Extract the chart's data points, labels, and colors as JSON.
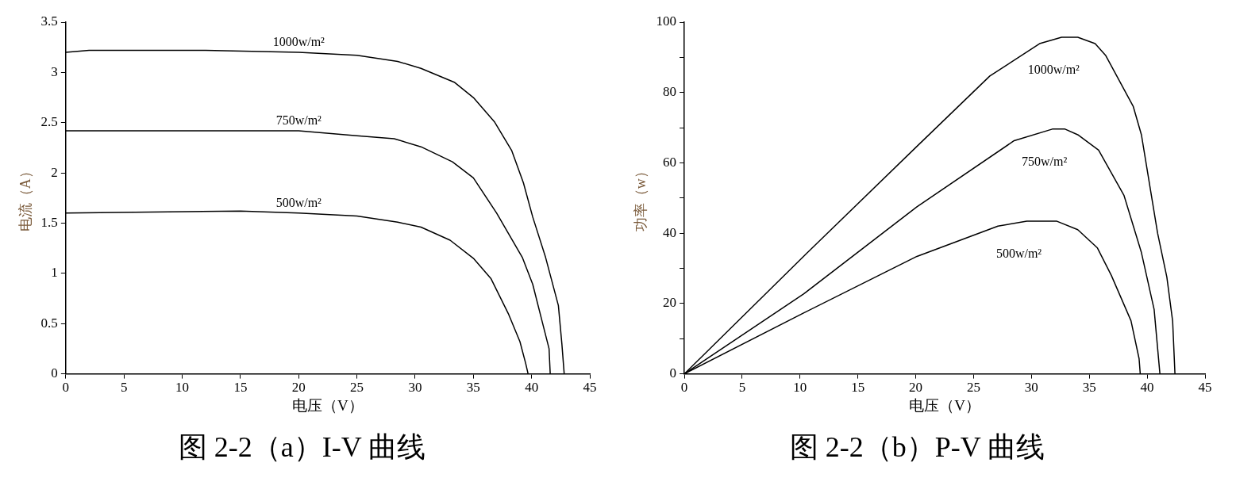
{
  "chart_data": [
    {
      "type": "line",
      "title": "图 2-2（a）I-V 曲线",
      "xlabel": "电压（V）",
      "ylabel": "电流（A）",
      "xlim": [
        0,
        45
      ],
      "xticks": [
        0,
        5,
        10,
        15,
        20,
        25,
        30,
        35,
        40,
        45
      ],
      "ylim": [
        0,
        3.5
      ],
      "yticks": [
        0,
        0.5,
        1,
        1.5,
        2,
        2.5,
        3,
        3.5
      ],
      "grid": false,
      "legend": false,
      "marker": "none",
      "line_style": "solid",
      "series": [
        {
          "name": "1000w/m²",
          "color": "#000000",
          "x": [
            0,
            2,
            12,
            20,
            25,
            28.5,
            30.5,
            33.4,
            35,
            36.8,
            38.3,
            39.3,
            40.1,
            41.2,
            42.3,
            42.6,
            42.8
          ],
          "values": [
            3.2,
            3.22,
            3.22,
            3.2,
            3.17,
            3.11,
            3.04,
            2.9,
            2.75,
            2.51,
            2.22,
            1.9,
            1.56,
            1.16,
            0.68,
            0.3,
            0
          ]
        },
        {
          "name": "750w/m²",
          "color": "#000000",
          "x": [
            0,
            20,
            25,
            28.2,
            30.5,
            33.2,
            35,
            37,
            39.2,
            40.1,
            40.8,
            41.5,
            41.6
          ],
          "values": [
            2.42,
            2.42,
            2.37,
            2.34,
            2.26,
            2.11,
            1.95,
            1.6,
            1.16,
            0.89,
            0.57,
            0.25,
            0
          ]
        },
        {
          "name": "500w/m²",
          "color": "#000000",
          "x": [
            0,
            15,
            20,
            25,
            28.5,
            30.5,
            33,
            35,
            36.5,
            38,
            39,
            39.5,
            39.7
          ],
          "values": [
            1.6,
            1.62,
            1.6,
            1.57,
            1.51,
            1.46,
            1.33,
            1.15,
            0.95,
            0.6,
            0.32,
            0.1,
            0
          ]
        }
      ]
    },
    {
      "type": "line",
      "title": "图 2-2（b）P-V 曲线",
      "xlabel": "电压（V）",
      "ylabel": "功率（w）",
      "xlim": [
        0,
        45
      ],
      "xticks": [
        0,
        5,
        10,
        15,
        20,
        25,
        30,
        35,
        40,
        45
      ],
      "ylim": [
        0,
        100
      ],
      "yticks": [
        0,
        {
          "value": 10,
          "label": null
        },
        20,
        {
          "value": 30,
          "label": null
        },
        40,
        {
          "value": 50,
          "label": null
        },
        60,
        {
          "value": 70,
          "label": null
        },
        80,
        {
          "value": 90,
          "label": null
        },
        100
      ],
      "grid": false,
      "legend": false,
      "marker": "none",
      "line_style": "solid",
      "series": [
        {
          "name": "1000w/m²",
          "color": "#000000",
          "x": [
            0,
            10.3,
            20.1,
            26.4,
            30.7,
            32.6,
            34,
            35.5,
            36.4,
            38.8,
            39.5,
            40.9,
            41.7,
            42.2,
            42.4
          ],
          "values": [
            0,
            33.4,
            64.7,
            84.7,
            93.9,
            95.7,
            95.7,
            93.9,
            90.6,
            76,
            68,
            40,
            27.5,
            15,
            0
          ]
        },
        {
          "name": "750w/m²",
          "color": "#000000",
          "x": [
            0,
            10.3,
            20.1,
            28.5,
            31.8,
            32.9,
            34,
            35.8,
            38,
            39.5,
            40.6,
            41.1
          ],
          "values": [
            0,
            22.7,
            47.5,
            66.3,
            69.6,
            69.6,
            68,
            63.6,
            50.7,
            34.5,
            18.3,
            0
          ]
        },
        {
          "name": "500w/m²",
          "color": "#000000",
          "x": [
            0,
            10.3,
            20.1,
            27.1,
            29.6,
            32.2,
            34,
            35.7,
            36.9,
            38.6,
            39.3,
            39.4
          ],
          "values": [
            0,
            17.3,
            33.4,
            42,
            43.4,
            43.4,
            41,
            35.8,
            28,
            15.1,
            4.3,
            0
          ]
        }
      ]
    }
  ]
}
